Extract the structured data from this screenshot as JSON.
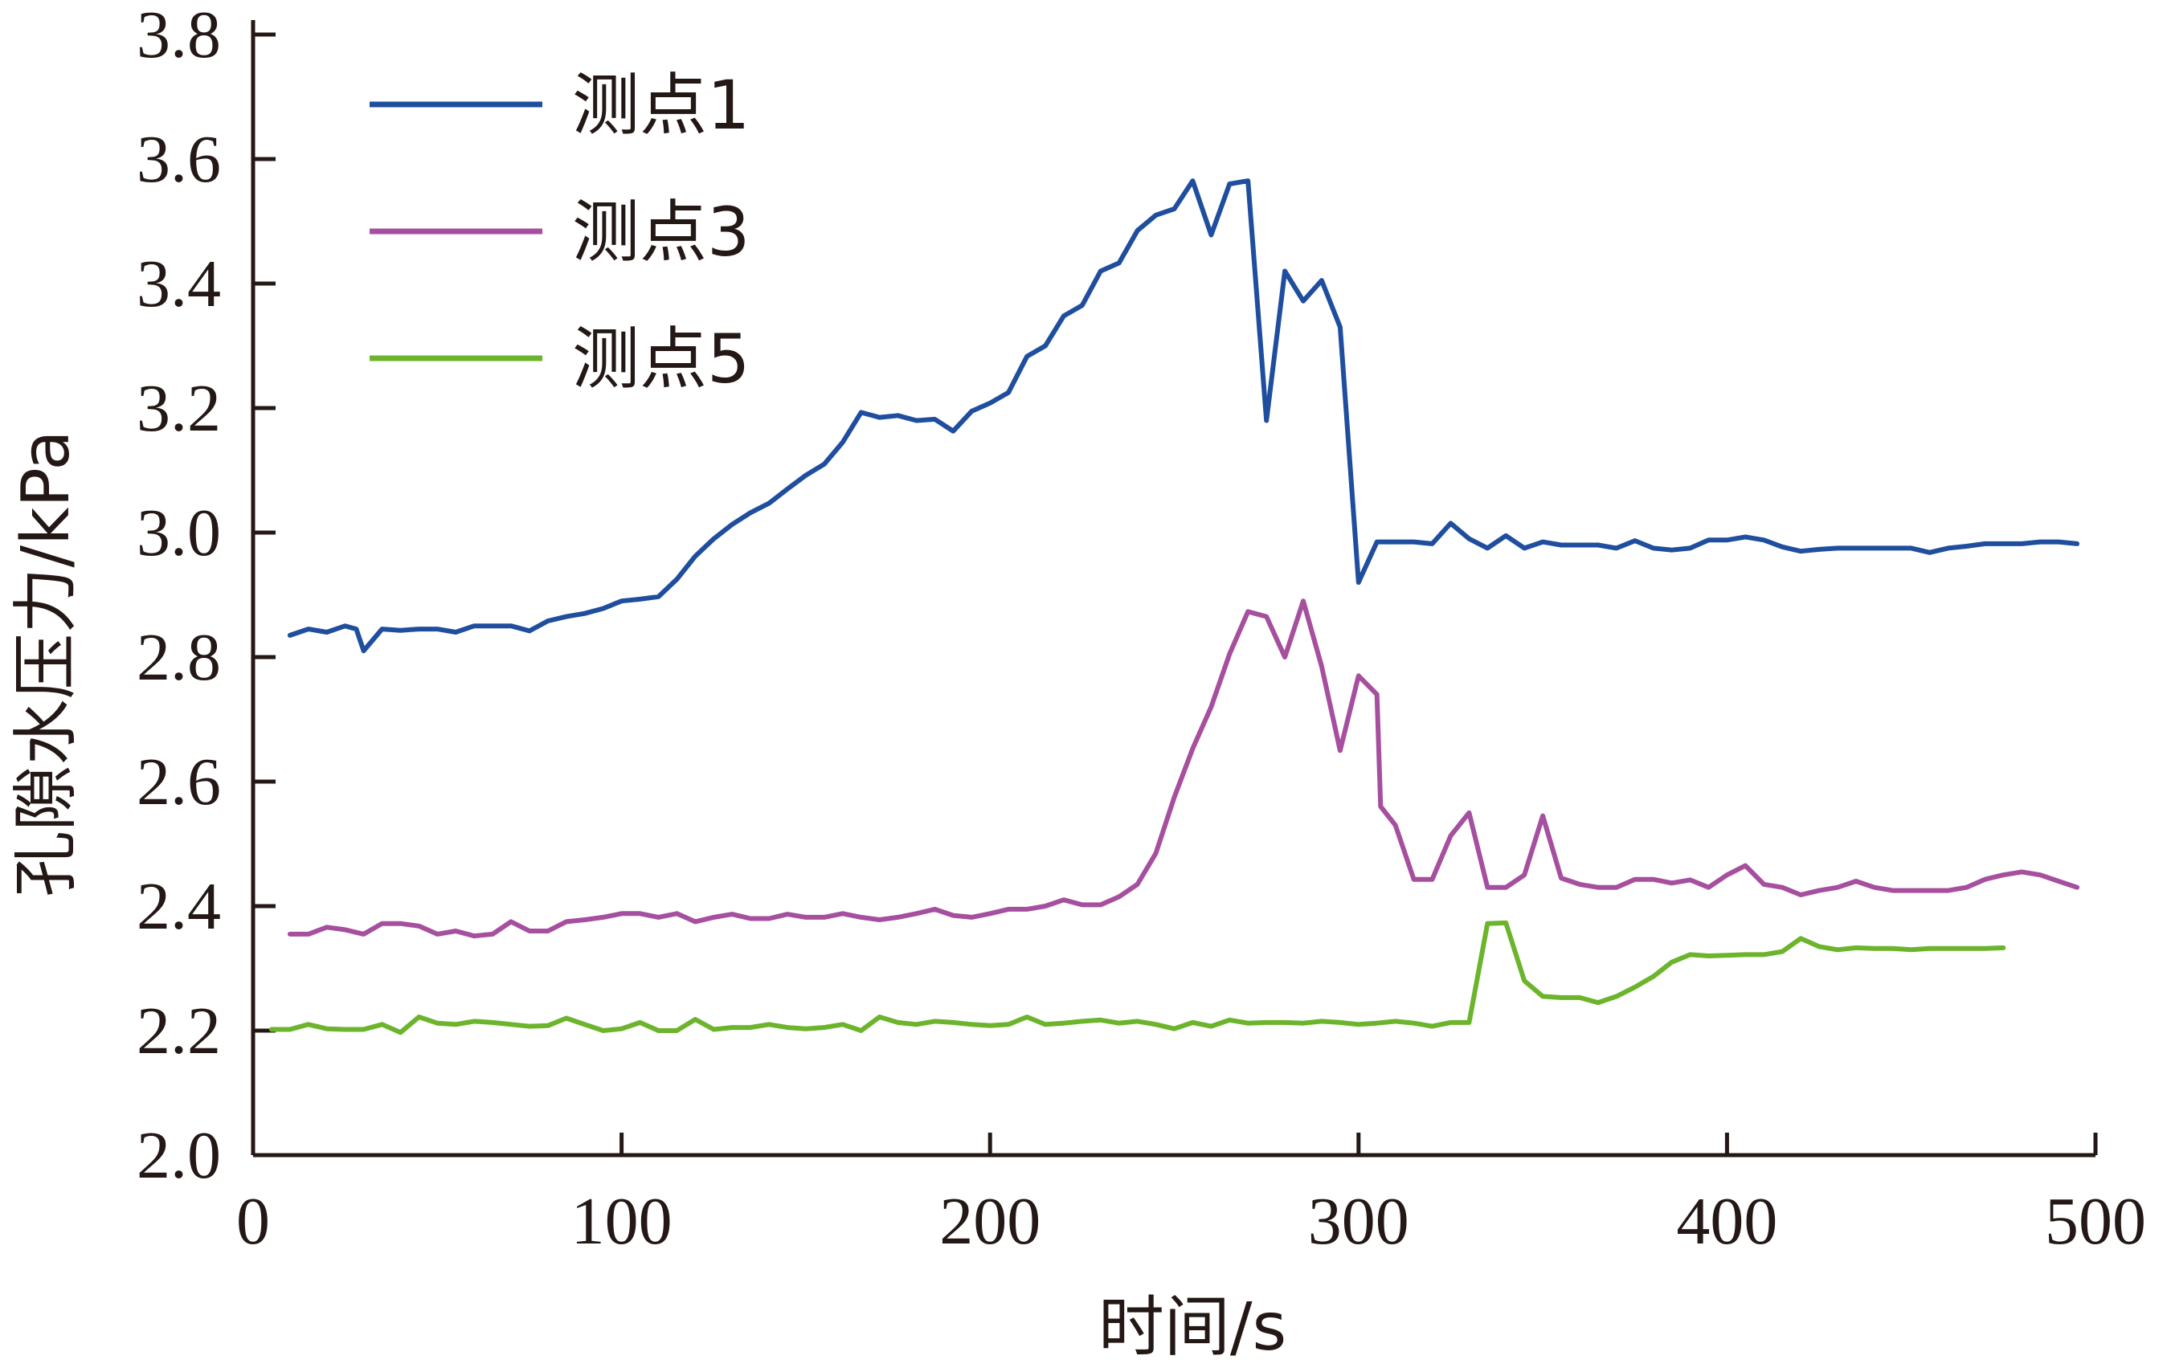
{
  "chart_data": {
    "type": "line",
    "xlabel": "时间/s",
    "ylabel": "孔隙水压力/kPa",
    "xlim": [
      0,
      500
    ],
    "ylim": [
      2.0,
      3.8
    ],
    "xticks": [
      0,
      100,
      200,
      300,
      400,
      500
    ],
    "xtick_labels": [
      "0",
      "100",
      "200",
      "300",
      "400",
      "500"
    ],
    "yticks": [
      2.0,
      2.2,
      2.4,
      2.6,
      2.8,
      3.0,
      3.2,
      3.4,
      3.6,
      3.8
    ],
    "ytick_labels": [
      "2.0",
      "2.2",
      "2.4",
      "2.6",
      "2.8",
      "3.0",
      "3.2",
      "3.4",
      "3.6",
      "3.8"
    ],
    "grid": false,
    "legend_position": "top-left",
    "series": [
      {
        "name": "测点1",
        "color": "#1f4e9e",
        "x": [
          10,
          15,
          20,
          25,
          28,
          30,
          35,
          40,
          45,
          50,
          55,
          60,
          65,
          70,
          75,
          80,
          85,
          90,
          95,
          100,
          105,
          110,
          115,
          120,
          125,
          130,
          135,
          140,
          145,
          150,
          155,
          160,
          165,
          170,
          175,
          180,
          185,
          190,
          195,
          200,
          205,
          210,
          215,
          220,
          225,
          230,
          235,
          240,
          245,
          250,
          255,
          260,
          265,
          270,
          275,
          280,
          285,
          290,
          295,
          300,
          305,
          310,
          315,
          320,
          325,
          330,
          335,
          340,
          345,
          350,
          355,
          360,
          365,
          370,
          375,
          380,
          385,
          390,
          395,
          400,
          405,
          410,
          415,
          420,
          425,
          430,
          435,
          440,
          445,
          450,
          455,
          460,
          465,
          470,
          475,
          480,
          485,
          490,
          495
        ],
        "y": [
          2.835,
          2.845,
          2.84,
          2.85,
          2.845,
          2.81,
          2.845,
          2.843,
          2.845,
          2.845,
          2.84,
          2.85,
          2.85,
          2.85,
          2.842,
          2.858,
          2.865,
          2.87,
          2.878,
          2.89,
          2.893,
          2.897,
          2.925,
          2.962,
          2.99,
          3.013,
          3.032,
          3.047,
          3.07,
          3.092,
          3.11,
          3.145,
          3.193,
          3.185,
          3.188,
          3.18,
          3.182,
          3.163,
          3.195,
          3.208,
          3.225,
          3.283,
          3.3,
          3.348,
          3.365,
          3.42,
          3.433,
          3.485,
          3.51,
          3.52,
          3.565,
          3.478,
          3.56,
          3.565,
          3.18,
          3.42,
          3.372,
          3.405,
          3.33,
          2.92,
          2.985,
          2.985,
          2.985,
          2.982,
          3.015,
          2.99,
          2.975,
          2.995,
          2.975,
          2.985,
          2.98,
          2.98,
          2.98,
          2.975,
          2.987,
          2.975,
          2.972,
          2.975,
          2.988,
          2.988,
          2.993,
          2.988,
          2.977,
          2.97,
          2.973,
          2.975,
          2.975,
          2.975,
          2.975,
          2.975,
          2.968,
          2.975,
          2.978,
          2.982,
          2.982,
          2.982,
          2.985,
          2.985,
          2.982
        ]
      },
      {
        "name": "测点3",
        "color": "#a64f9e",
        "x": [
          10,
          15,
          20,
          25,
          30,
          35,
          40,
          45,
          50,
          55,
          60,
          65,
          70,
          75,
          80,
          85,
          90,
          95,
          100,
          105,
          110,
          115,
          120,
          125,
          130,
          135,
          140,
          145,
          150,
          155,
          160,
          165,
          170,
          175,
          180,
          185,
          190,
          195,
          200,
          205,
          210,
          215,
          220,
          225,
          230,
          235,
          240,
          245,
          250,
          255,
          260,
          265,
          270,
          275,
          280,
          285,
          290,
          295,
          300,
          305,
          306,
          310,
          315,
          320,
          325,
          330,
          335,
          340,
          345,
          350,
          355,
          360,
          365,
          370,
          375,
          380,
          385,
          390,
          395,
          400,
          405,
          410,
          415,
          420,
          425,
          430,
          435,
          440,
          445,
          450,
          455,
          460,
          465,
          470,
          475,
          480,
          485,
          490,
          495
        ],
        "y": [
          2.355,
          2.355,
          2.366,
          2.362,
          2.355,
          2.372,
          2.372,
          2.368,
          2.355,
          2.36,
          2.352,
          2.355,
          2.375,
          2.36,
          2.36,
          2.375,
          2.378,
          2.382,
          2.388,
          2.388,
          2.382,
          2.388,
          2.375,
          2.382,
          2.387,
          2.38,
          2.38,
          2.387,
          2.382,
          2.382,
          2.388,
          2.382,
          2.378,
          2.382,
          2.388,
          2.395,
          2.385,
          2.382,
          2.388,
          2.395,
          2.395,
          2.4,
          2.41,
          2.402,
          2.402,
          2.415,
          2.435,
          2.485,
          2.575,
          2.653,
          2.72,
          2.805,
          2.873,
          2.865,
          2.8,
          2.89,
          2.785,
          2.65,
          2.77,
          2.74,
          2.56,
          2.53,
          2.443,
          2.443,
          2.513,
          2.55,
          2.43,
          2.43,
          2.45,
          2.545,
          2.445,
          2.435,
          2.43,
          2.43,
          2.443,
          2.443,
          2.437,
          2.442,
          2.43,
          2.45,
          2.465,
          2.435,
          2.43,
          2.418,
          2.425,
          2.43,
          2.44,
          2.43,
          2.425,
          2.425,
          2.425,
          2.425,
          2.43,
          2.443,
          2.45,
          2.455,
          2.45,
          2.44,
          2.43
        ]
      },
      {
        "name": "测点5",
        "color": "#6cb42c",
        "x": [
          5,
          10,
          15,
          20,
          25,
          30,
          35,
          40,
          45,
          50,
          55,
          60,
          65,
          70,
          75,
          80,
          85,
          90,
          95,
          100,
          105,
          110,
          115,
          120,
          125,
          130,
          135,
          140,
          145,
          150,
          155,
          160,
          165,
          170,
          175,
          180,
          185,
          190,
          195,
          200,
          205,
          210,
          215,
          220,
          225,
          230,
          235,
          240,
          245,
          250,
          255,
          260,
          265,
          270,
          275,
          280,
          285,
          290,
          295,
          300,
          305,
          310,
          315,
          320,
          325,
          330,
          335,
          340,
          345,
          350,
          355,
          360,
          365,
          370,
          375,
          380,
          385,
          390,
          395,
          400,
          405,
          410,
          415,
          420,
          425,
          430,
          435,
          440,
          445,
          450,
          455,
          460,
          465,
          470,
          475
        ],
        "y": [
          2.202,
          2.202,
          2.21,
          2.203,
          2.202,
          2.202,
          2.21,
          2.197,
          2.222,
          2.212,
          2.21,
          2.215,
          2.213,
          2.21,
          2.207,
          2.208,
          2.22,
          2.21,
          2.2,
          2.203,
          2.213,
          2.2,
          2.2,
          2.218,
          2.202,
          2.205,
          2.205,
          2.21,
          2.205,
          2.203,
          2.205,
          2.21,
          2.2,
          2.222,
          2.213,
          2.21,
          2.215,
          2.213,
          2.21,
          2.208,
          2.21,
          2.222,
          2.21,
          2.212,
          2.215,
          2.217,
          2.212,
          2.215,
          2.21,
          2.203,
          2.213,
          2.207,
          2.217,
          2.212,
          2.213,
          2.213,
          2.212,
          2.215,
          2.213,
          2.21,
          2.212,
          2.215,
          2.212,
          2.207,
          2.213,
          2.213,
          2.372,
          2.373,
          2.28,
          2.255,
          2.253,
          2.253,
          2.245,
          2.255,
          2.27,
          2.287,
          2.31,
          2.322,
          2.32,
          2.321,
          2.322,
          2.322,
          2.327,
          2.348,
          2.335,
          2.33,
          2.333,
          2.332,
          2.332,
          2.33,
          2.332,
          2.332,
          2.332,
          2.332,
          2.333
        ]
      }
    ]
  }
}
